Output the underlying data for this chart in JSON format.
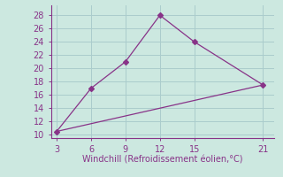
{
  "line1_x": [
    3,
    6,
    9,
    12,
    15,
    21
  ],
  "line1_y": [
    10.5,
    17,
    21,
    28,
    24,
    17.5
  ],
  "line2_x": [
    3,
    21
  ],
  "line2_y": [
    10.5,
    17.5
  ],
  "line_color": "#883388",
  "marker": "D",
  "marker_size": 3,
  "xlabel": "Windchill (Refroidissement éolien,°C)",
  "xlabel_color": "#883388",
  "xlabel_fontsize": 7,
  "xticks": [
    3,
    6,
    9,
    12,
    15,
    21
  ],
  "yticks": [
    10,
    12,
    14,
    16,
    18,
    20,
    22,
    24,
    26,
    28
  ],
  "xlim": [
    2.5,
    22.0
  ],
  "ylim": [
    9.5,
    29.5
  ],
  "bg_color": "#cce8e0",
  "grid_color": "#aacccc",
  "tick_color": "#883388",
  "tick_fontsize": 7,
  "linewidth": 0.9,
  "figsize": [
    3.2,
    2.0
  ],
  "dpi": 100
}
